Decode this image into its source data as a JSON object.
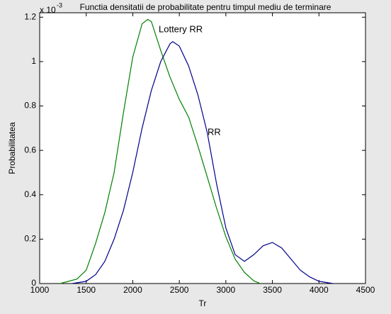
{
  "chart_data": {
    "type": "line",
    "title": "Functia densitatii de probabilitate pentru timpul mediu de terminare",
    "x_label": "Tr",
    "y_label": "Probabilitatea",
    "y_multiplier": "x 10",
    "y_multiplier_exponent": "-3",
    "annotations": [
      "Lottery RR",
      "RR"
    ],
    "xlim": [
      1000,
      4500
    ],
    "xticks": [
      1000,
      1500,
      2000,
      2500,
      3000,
      3500,
      4000,
      4500
    ],
    "ylim": [
      0,
      1.22
    ],
    "yticks": [
      0,
      0.2,
      0.4,
      0.6,
      0.8,
      1,
      1.2
    ],
    "series": [
      {
        "name": "Lottery RR",
        "color": "#008000",
        "x": [
          1220,
          1400,
          1500,
          1600,
          1700,
          1800,
          1900,
          2000,
          2100,
          2160,
          2200,
          2300,
          2400,
          2500,
          2600,
          2700,
          2800,
          2900,
          3000,
          3100,
          3200,
          3300,
          3370
        ],
        "values": [
          0,
          0.02,
          0.06,
          0.18,
          0.32,
          0.5,
          0.77,
          1.02,
          1.17,
          1.19,
          1.18,
          1.05,
          0.93,
          0.83,
          0.75,
          0.62,
          0.48,
          0.34,
          0.21,
          0.11,
          0.05,
          0.012,
          0
        ]
      },
      {
        "name": "RR",
        "color": "#00008b",
        "x": [
          1350,
          1500,
          1600,
          1700,
          1800,
          1900,
          2000,
          2100,
          2200,
          2300,
          2400,
          2430,
          2500,
          2600,
          2700,
          2800,
          2900,
          3000,
          3100,
          3200,
          3300,
          3400,
          3500,
          3600,
          3700,
          3800,
          3900,
          4000,
          4150
        ],
        "values": [
          0,
          0.01,
          0.04,
          0.1,
          0.2,
          0.33,
          0.5,
          0.7,
          0.87,
          1.0,
          1.08,
          1.09,
          1.07,
          0.98,
          0.85,
          0.68,
          0.45,
          0.25,
          0.13,
          0.1,
          0.13,
          0.17,
          0.185,
          0.16,
          0.11,
          0.06,
          0.03,
          0.01,
          0
        ]
      }
    ]
  }
}
